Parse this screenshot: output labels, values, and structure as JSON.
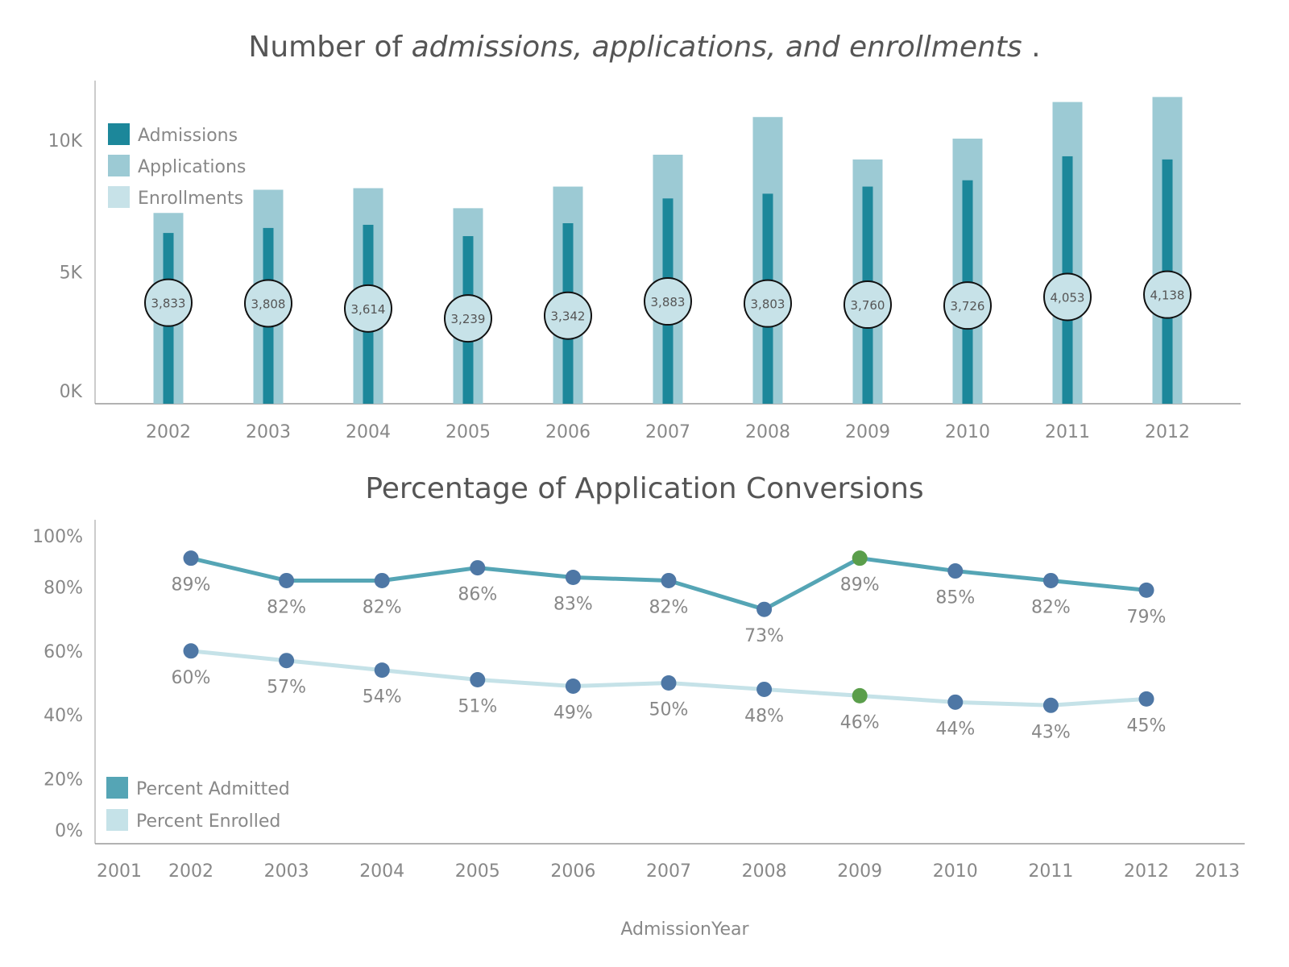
{
  "chart_data": [
    {
      "type": "bar",
      "title_parts": [
        "Number of ",
        "admissions, applications, and enrollments",
        " ."
      ],
      "categories": [
        "2002",
        "2003",
        "2004",
        "2005",
        "2006",
        "2007",
        "2008",
        "2009",
        "2010",
        "2011",
        "2012"
      ],
      "y_ticks": [
        {
          "v": 0,
          "label": "0K"
        },
        {
          "v": 5000,
          "label": "5K"
        },
        {
          "v": 10000,
          "label": "10K"
        }
      ],
      "ylim": [
        0,
        12000
      ],
      "legend_position": "top-left",
      "series": [
        {
          "name": "Admissions",
          "color": "#1c879a",
          "values": [
            6480,
            6670,
            6790,
            6360,
            6850,
            7790,
            7970,
            8240,
            8480,
            9390,
            9270
          ]
        },
        {
          "name": "Applications",
          "color": "#9ccad4",
          "values": [
            7240,
            8120,
            8180,
            7420,
            8240,
            9450,
            10880,
            9270,
            10060,
            11450,
            11640
          ]
        },
        {
          "name": "Enrollments",
          "color": "#c7e2e8",
          "values": [
            3833,
            3808,
            3614,
            3239,
            3342,
            3883,
            3803,
            3760,
            3726,
            4053,
            4138
          ],
          "labels": [
            "3,833",
            "3,808",
            "3,614",
            "3,239",
            "3,342",
            "3,883",
            "3,803",
            "3,760",
            "3,726",
            "4,053",
            "4,138"
          ]
        }
      ],
      "grid": false
    },
    {
      "type": "line",
      "title": "Percentage of Application Conversions",
      "xlabel": "AdmissionYear",
      "x_ticks": [
        "2001",
        "2002",
        "2003",
        "2004",
        "2005",
        "2006",
        "2007",
        "2008",
        "2009",
        "2010",
        "2011",
        "2012",
        "2013"
      ],
      "x": [
        2002,
        2003,
        2004,
        2005,
        2006,
        2007,
        2008,
        2009,
        2010,
        2011,
        2012
      ],
      "y_ticks": [
        "0%",
        "20%",
        "40%",
        "60%",
        "80%",
        "100%"
      ],
      "ylim": [
        0,
        100
      ],
      "legend_position": "bottom-left",
      "marker_color": "#4e77a5",
      "highlight_color": "#5a9e4b",
      "highlight_x": 2009,
      "series": [
        {
          "name": "Percent Admitted",
          "color": "#55a5b5",
          "values": [
            89,
            82,
            82,
            86,
            83,
            82,
            73,
            89,
            85,
            82,
            79
          ]
        },
        {
          "name": "Percent Enrolled",
          "color": "#c5e2e8",
          "values": [
            60,
            57,
            54,
            51,
            49,
            50,
            48,
            46,
            44,
            43,
            45
          ]
        }
      ],
      "grid": false
    }
  ]
}
